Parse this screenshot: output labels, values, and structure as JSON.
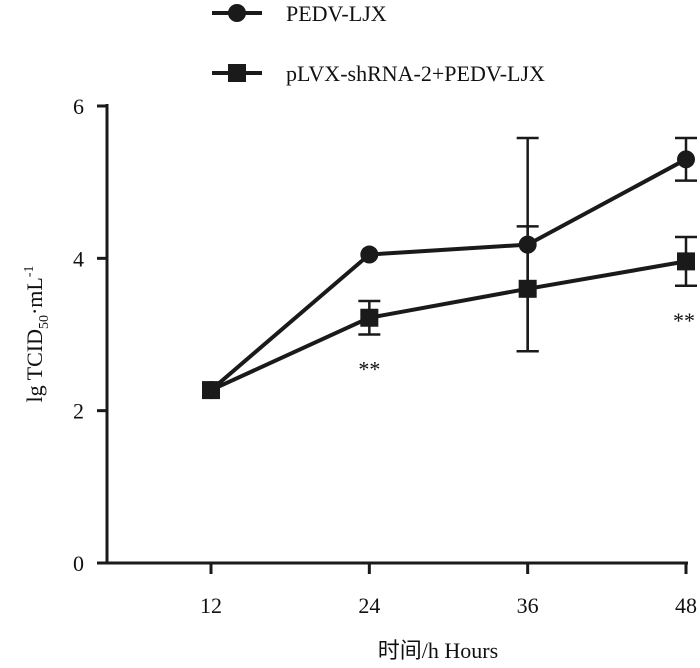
{
  "chart_data": {
    "type": "line",
    "x": [
      12,
      24,
      36,
      48
    ],
    "xlabel": "时间/h Hours",
    "ylabel": {
      "base": "lg TCID",
      "sub": "50",
      "mid": "·mL",
      "sup": "-1"
    },
    "xticks": [
      12,
      24,
      36,
      48
    ],
    "yticks": [
      0,
      2,
      4,
      6
    ],
    "xlim": [
      12,
      48
    ],
    "ylim": [
      0,
      6
    ],
    "grid": false,
    "legend": "top",
    "series": [
      {
        "name": "PEDV-LJX",
        "marker": "circle",
        "color": "#1a1a1a",
        "values": [
          2.27,
          4.05,
          4.18,
          5.3
        ],
        "error": [
          0.05,
          0.05,
          1.4,
          0.28
        ]
      },
      {
        "name": "pLVX-shRNA-2+PEDV-LJX",
        "marker": "square",
        "color": "#1a1a1a",
        "values": [
          2.27,
          3.22,
          3.6,
          3.96
        ],
        "error": [
          0.05,
          0.22,
          0.82,
          0.32
        ]
      }
    ],
    "annotations": [
      {
        "x": 24,
        "text": "**"
      },
      {
        "x": 48,
        "text": "**"
      }
    ]
  }
}
